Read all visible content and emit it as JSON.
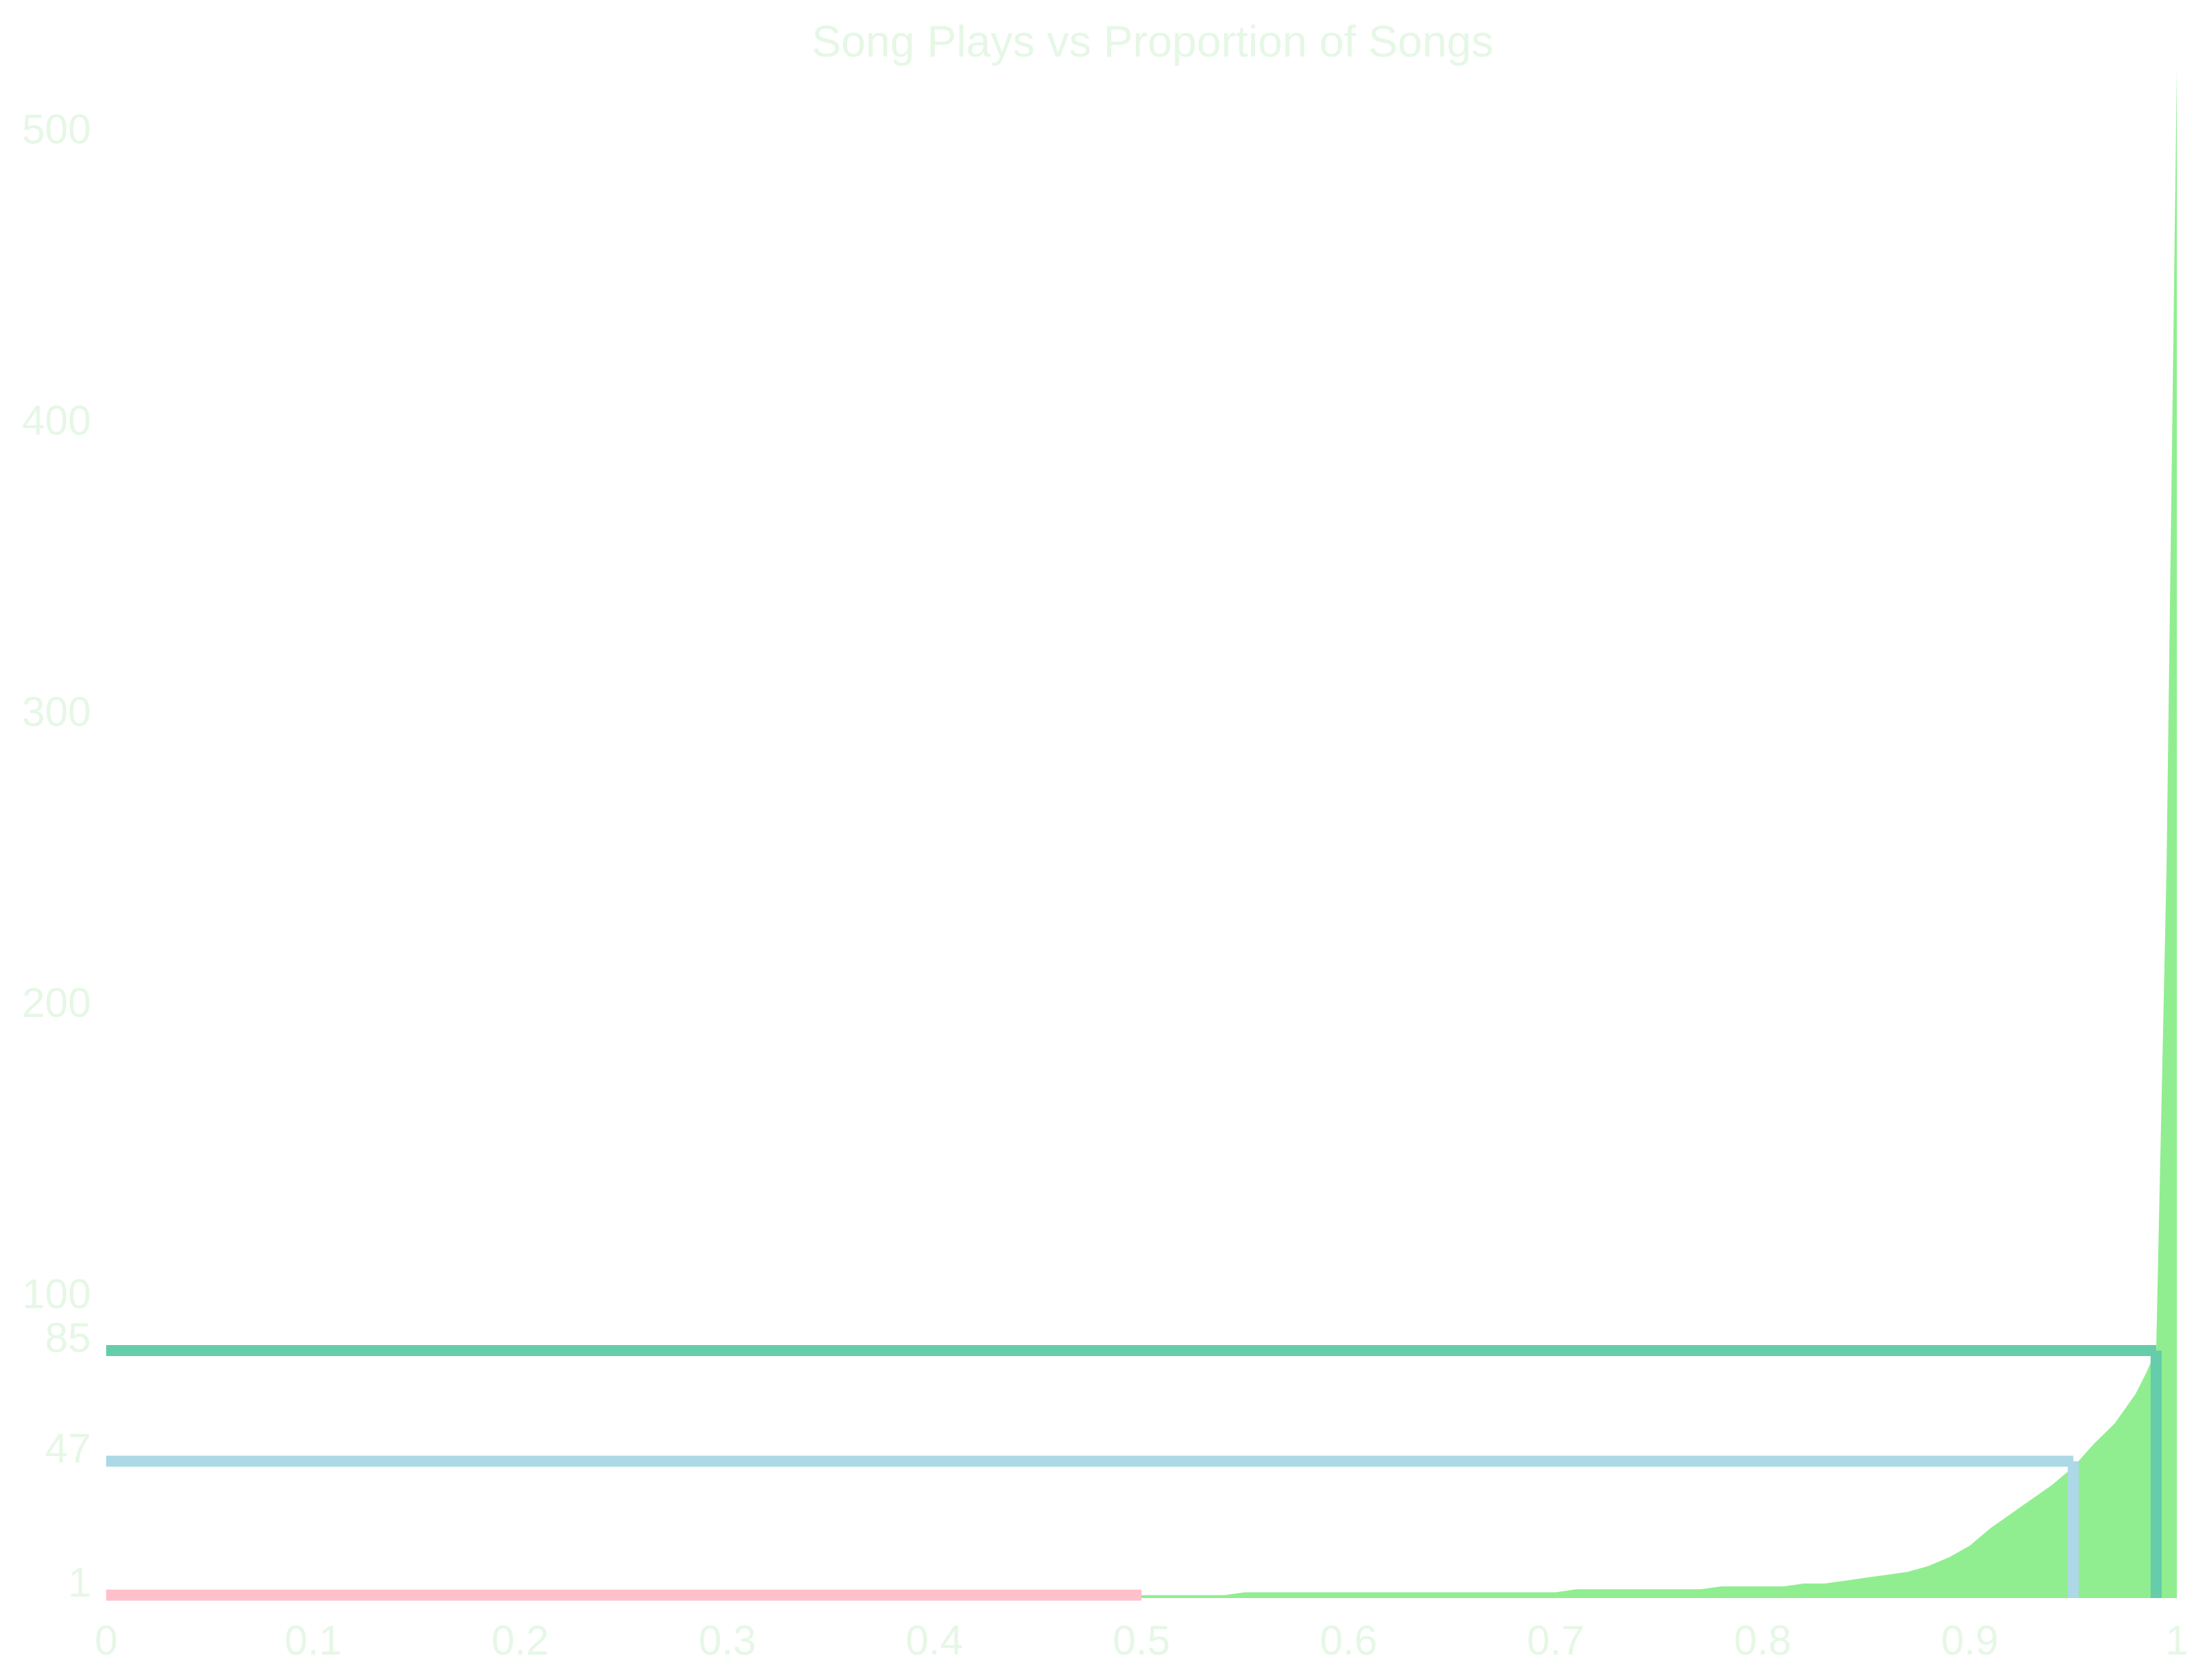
{
  "chart_data": {
    "type": "area",
    "title": "Song Plays vs Proportion of Songs",
    "xlabel": "",
    "ylabel": "",
    "xlim": [
      0,
      1
    ],
    "ylim": [
      0,
      525
    ],
    "grid": false,
    "x_ticks": [
      "0",
      "0.1",
      "0.2",
      "0.3",
      "0.4",
      "0.5",
      "0.6",
      "0.7",
      "0.8",
      "0.9",
      "1"
    ],
    "x_tick_values": [
      0,
      0.1,
      0.2,
      0.3,
      0.4,
      0.5,
      0.6,
      0.7,
      0.8,
      0.9,
      1
    ],
    "y_ticks": [
      "1",
      "47",
      "85",
      "100",
      "200",
      "300",
      "400",
      "500"
    ],
    "y_tick_values": [
      1,
      47,
      85,
      100,
      200,
      300,
      400,
      500
    ],
    "series": [
      {
        "color": "#90ee90",
        "x": [
          0,
          0.5,
          0.54,
          0.55,
          0.7,
          0.71,
          0.77,
          0.78,
          0.81,
          0.82,
          0.83,
          0.84,
          0.85,
          0.86,
          0.87,
          0.88,
          0.89,
          0.9,
          0.91,
          0.92,
          0.93,
          0.94,
          0.95,
          0.96,
          0.97,
          0.98,
          0.985,
          0.99,
          0.995,
          1.0
        ],
        "y": [
          1,
          1,
          1,
          2,
          2,
          3,
          3,
          4,
          4,
          5,
          5,
          6,
          7,
          8,
          9,
          11,
          14,
          18,
          24,
          29,
          34,
          39,
          45,
          53,
          60,
          70,
          77,
          85,
          250,
          525
        ]
      }
    ],
    "reference_lines": [
      {
        "y": 1,
        "x_end": 0.5,
        "color": "#ffc0cb"
      },
      {
        "y": 47,
        "x_end": 0.95,
        "color": "#add8e6"
      },
      {
        "y": 85,
        "x_end": 0.99,
        "color": "#66cdaa"
      }
    ]
  }
}
